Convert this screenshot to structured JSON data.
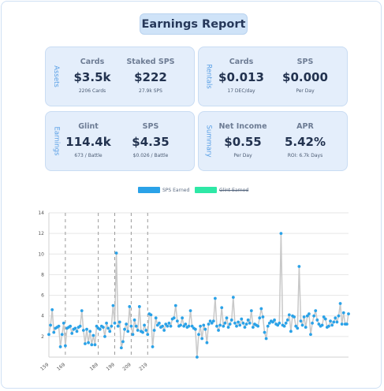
{
  "header": {
    "title": "Earnings Report"
  },
  "sections": [
    {
      "label": "Assets",
      "metrics": [
        {
          "label": "Cards",
          "value": "$3.5k",
          "sub": "2206 Cards"
        },
        {
          "label": "Staked SPS",
          "value": "$222",
          "sub": "27.9k SPS"
        }
      ]
    },
    {
      "label": "Rentals",
      "metrics": [
        {
          "label": "Cards",
          "value": "$0.013",
          "sub": "17 DEC/day"
        },
        {
          "label": "SPS",
          "value": "$0.000",
          "sub": "Per Day"
        }
      ]
    },
    {
      "label": "Earnings",
      "metrics": [
        {
          "label": "Glint",
          "value": "114.4k",
          "sub": "673 / Battle"
        },
        {
          "label": "SPS",
          "value": "$4.35",
          "sub": "$0.026 / Battle"
        }
      ]
    },
    {
      "label": "Summary",
      "metrics": [
        {
          "label": "Net Income",
          "value": "$0.55",
          "sub": "Per Day"
        },
        {
          "label": "APR",
          "value": "5.42%",
          "sub": "ROI: 6.7k Days"
        }
      ]
    }
  ],
  "legend": [
    {
      "label": "SPS Earned",
      "color": "#2aa2e8",
      "hidden": false
    },
    {
      "label": "Glint Earned",
      "color": "#2ee8a6",
      "hidden": true
    }
  ],
  "chart_data": {
    "type": "line",
    "x_start": 159,
    "x_ticks": [
      159,
      169,
      189,
      199,
      209,
      219
    ],
    "x_tick_labels": [
      "159",
      "169",
      "189",
      "199",
      "209",
      "219"
    ],
    "ylim": [
      0,
      14
    ],
    "y_ticks": [
      2,
      4,
      6,
      8,
      10,
      12,
      14
    ],
    "grid": true,
    "series": [
      {
        "name": "SPS Earned",
        "color": "#2aa2e8",
        "line_color": "#c8c8c8",
        "values": [
          2.2,
          3.1,
          4.6,
          2.4,
          2.8,
          2.9,
          3.0,
          1.0,
          2.2,
          3.3,
          1.1,
          2.8,
          2.9,
          3.0,
          2.3,
          2.7,
          2.8,
          2.5,
          2.9,
          3.0,
          4.5,
          2.6,
          1.3,
          2.7,
          1.4,
          2.5,
          1.2,
          2.1,
          1.2,
          3.0,
          2.8,
          2.7,
          3.0,
          2.9,
          2.0,
          3.3,
          2.8,
          2.5,
          3.0,
          5.0,
          3.3,
          10.1,
          3.0,
          3.4,
          0.9,
          1.5,
          2.7,
          3.2,
          2.5,
          4.9,
          3.0,
          2.2,
          3.6,
          3.0,
          2.6,
          4.9,
          2.5,
          2.4,
          3.1,
          2.6,
          2.2,
          4.2,
          4.1,
          1.0,
          2.6,
          3.8,
          3.1,
          3.3,
          2.9,
          3.0,
          2.6,
          3.2,
          3.0,
          3.3,
          3.0,
          3.7,
          3.8,
          5.0,
          3.5,
          3.0,
          3.1,
          3.8,
          3.0,
          3.2,
          2.9,
          3.0,
          4.5,
          3.0,
          2.8,
          2.7,
          0.0,
          2.2,
          3.0,
          1.8,
          3.1,
          2.7,
          1.4,
          3.2,
          3.5,
          3.3,
          3.5,
          5.7,
          3.0,
          2.6,
          3.1,
          4.8,
          3.0,
          3.3,
          3.8,
          2.9,
          3.2,
          3.6,
          5.8,
          3.3,
          3.0,
          3.4,
          3.1,
          3.7,
          3.3,
          2.9,
          3.2,
          3.6,
          3.3,
          4.5,
          2.9,
          3.2,
          3.1,
          3.0,
          3.8,
          4.7,
          3.9,
          2.4,
          1.8,
          3.0,
          3.3,
          3.5,
          3.4,
          3.6,
          3.2,
          3.1,
          3.3,
          12.0,
          3.1,
          3.0,
          3.3,
          3.6,
          4.1,
          2.5,
          4.0,
          3.9,
          3.0,
          2.8,
          8.8,
          3.5,
          3.1,
          3.9,
          2.9,
          4.0,
          4.2,
          2.2,
          3.3,
          4.0,
          4.5,
          3.6,
          3.2,
          3.0,
          3.1,
          3.9,
          3.7,
          2.9,
          3.0,
          3.5,
          3.1,
          3.4,
          3.8,
          3.4,
          4.0,
          5.2,
          3.2,
          4.3,
          3.2,
          3.2,
          4.2
        ]
      }
    ]
  }
}
